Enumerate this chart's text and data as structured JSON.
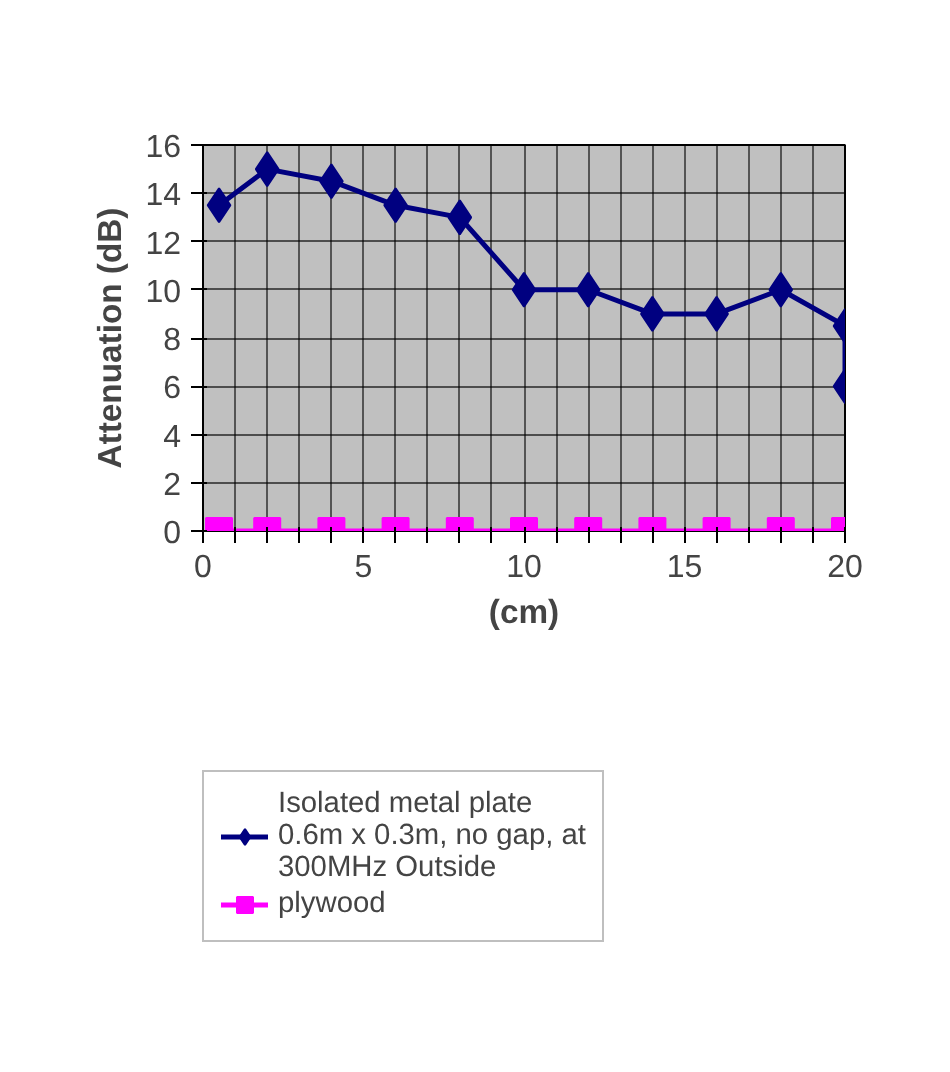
{
  "chart_data": {
    "type": "line",
    "xlabel": "(cm)",
    "ylabel": "Attenuation (dB)",
    "xlim": [
      0,
      20
    ],
    "ylim": [
      0,
      16
    ],
    "xticks": [
      0,
      {
        "value": 1,
        "label": null
      },
      {
        "value": 2,
        "label": null
      },
      {
        "value": 3,
        "label": null
      },
      {
        "value": 4,
        "label": null
      },
      5,
      {
        "value": 6,
        "label": null
      },
      {
        "value": 7,
        "label": null
      },
      {
        "value": 8,
        "label": null
      },
      {
        "value": 9,
        "label": null
      },
      10,
      {
        "value": 11,
        "label": null
      },
      {
        "value": 12,
        "label": null
      },
      {
        "value": 13,
        "label": null
      },
      {
        "value": 14,
        "label": null
      },
      15,
      {
        "value": 16,
        "label": null
      },
      {
        "value": 17,
        "label": null
      },
      {
        "value": 18,
        "label": null
      },
      {
        "value": 19,
        "label": null
      },
      20
    ],
    "yticks": [
      0,
      2,
      4,
      6,
      8,
      10,
      12,
      14,
      16
    ],
    "grid": true,
    "legend": "bottom",
    "series": [
      {
        "name": "Isolated metal plate 0.6m x 0.3m, no gap, at 300MHz Outside",
        "color": "#000080",
        "marker": "diamond",
        "x": [
          0.5,
          2,
          4,
          6,
          8,
          10,
          12,
          14,
          16,
          18,
          20,
          20
        ],
        "values": [
          13.5,
          15,
          14.5,
          13.5,
          13,
          10,
          10,
          9,
          9,
          10,
          8.5,
          6
        ]
      },
      {
        "name": "plywood",
        "color": "#ff00ff",
        "marker": "square",
        "x": [
          0.5,
          2,
          4,
          6,
          8,
          10,
          12,
          14,
          16,
          18,
          20
        ],
        "values": [
          0,
          0,
          0,
          0,
          0,
          0,
          0,
          0,
          0,
          0,
          0
        ]
      }
    ]
  }
}
